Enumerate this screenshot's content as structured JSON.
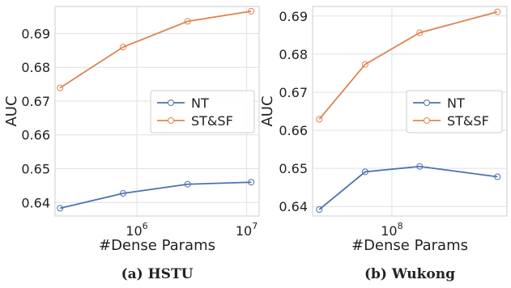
{
  "charts": [
    {
      "type": "line",
      "xscale": "log",
      "xlabel": "#Dense Params",
      "ylabel": "AUC",
      "caption": "(a) HSTU",
      "xlim": [
        180000,
        13000000
      ],
      "ylim": [
        0.636,
        0.698
      ],
      "xticks": [
        {
          "value": 1000000,
          "base": "10",
          "exp": "6"
        },
        {
          "value": 10000000,
          "base": "10",
          "exp": "7"
        }
      ],
      "yticks": [
        0.64,
        0.65,
        0.66,
        0.67,
        0.68,
        0.69
      ],
      "legend_position": "center-right",
      "grid": true,
      "series": [
        {
          "name": "NT",
          "color": "#4c72b0",
          "x": [
            200000,
            750000,
            2900000,
            11000000
          ],
          "y": [
            0.6383,
            0.6427,
            0.6454,
            0.646
          ]
        },
        {
          "name": "ST&SF",
          "color": "#dd8452",
          "x": [
            200000,
            750000,
            2900000,
            11000000
          ],
          "y": [
            0.6739,
            0.686,
            0.6936,
            0.6966
          ]
        }
      ]
    },
    {
      "type": "line",
      "xscale": "log",
      "xlabel": "#Dense Params",
      "ylabel": "AUC",
      "caption": "(b) Wukong",
      "xlim": [
        22000000,
        900000000
      ],
      "ylim": [
        0.6375,
        0.6925
      ],
      "xticks": [
        {
          "value": 100000000,
          "base": "10",
          "exp": "8"
        }
      ],
      "yticks": [
        0.64,
        0.65,
        0.66,
        0.67,
        0.68,
        0.69
      ],
      "legend_position": "center-right",
      "grid": true,
      "series": [
        {
          "name": "NT",
          "color": "#4c72b0",
          "x": [
            25000000,
            60000000,
            170000000,
            750000000
          ],
          "y": [
            0.6392,
            0.6491,
            0.6505,
            0.6478
          ]
        },
        {
          "name": "ST&SF",
          "color": "#dd8452",
          "x": [
            25000000,
            60000000,
            170000000,
            750000000
          ],
          "y": [
            0.6629,
            0.6773,
            0.6856,
            0.6911
          ]
        }
      ]
    }
  ],
  "chart_data": [
    {
      "type": "line",
      "title": "",
      "caption": "(a) HSTU",
      "xlabel": "#Dense Params",
      "ylabel": "AUC",
      "xscale": "log",
      "series": [
        {
          "name": "NT",
          "x": [
            200000,
            750000,
            2900000,
            11000000
          ],
          "y": [
            0.6383,
            0.6427,
            0.6454,
            0.646
          ]
        },
        {
          "name": "ST&SF",
          "x": [
            200000,
            750000,
            2900000,
            11000000
          ],
          "y": [
            0.6739,
            0.686,
            0.6936,
            0.6966
          ]
        }
      ]
    },
    {
      "type": "line",
      "title": "",
      "caption": "(b) Wukong",
      "xlabel": "#Dense Params",
      "ylabel": "AUC",
      "xscale": "log",
      "series": [
        {
          "name": "NT",
          "x": [
            25000000,
            60000000,
            170000000,
            750000000
          ],
          "y": [
            0.6392,
            0.6491,
            0.6505,
            0.6478
          ]
        },
        {
          "name": "ST&SF",
          "x": [
            25000000,
            60000000,
            170000000,
            750000000
          ],
          "y": [
            0.6629,
            0.6773,
            0.6856,
            0.6911
          ]
        }
      ]
    }
  ]
}
